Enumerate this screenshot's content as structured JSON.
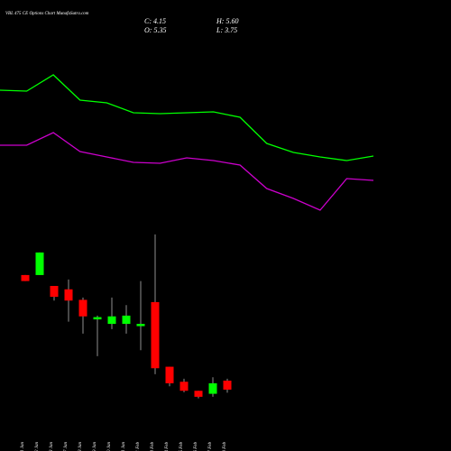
{
  "chart_data": {
    "type": "candlestick",
    "title": "VBL 475 CE Options Chart MunafaSutra.com",
    "header": {
      "close": "C: 4.15",
      "high": "H: 5.60",
      "open": "O: 5.35",
      "low": "L: 3.75"
    },
    "categories": [
      "21 Jan",
      "22 Jan",
      "23 Jan",
      "27 Jan",
      "28 Jan",
      "29 Jan",
      "30 Jan",
      "31 Jan",
      "01 Feb",
      "03 Feb",
      "04 Feb",
      "05 Feb",
      "06 Feb",
      "07 Feb",
      "10 Feb"
    ],
    "open": [
      19.4,
      19.4,
      17.95,
      17.5,
      16.1,
      13.5,
      12.9,
      12.9,
      12.6,
      15.8,
      7.2,
      5.2,
      4.0,
      3.6,
      5.35
    ],
    "high": [
      19.4,
      22.4,
      17.95,
      18.8,
      16.4,
      14.0,
      16.4,
      15.4,
      18.6,
      24.8,
      7.2,
      5.6,
      4.0,
      5.8,
      5.6
    ],
    "low": [
      18.6,
      19.4,
      16.0,
      13.2,
      11.6,
      8.6,
      12.2,
      11.6,
      9.4,
      6.2,
      4.6,
      3.8,
      3.0,
      3.2,
      3.75
    ],
    "close": [
      18.6,
      22.4,
      16.5,
      16.0,
      13.9,
      13.8,
      13.9,
      14.0,
      12.9,
      7.0,
      5.0,
      4.0,
      3.2,
      5.0,
      4.15
    ],
    "up_color": "#00ff00",
    "down_color": "#ff0000",
    "ylim": [
      2,
      27
    ],
    "lines": {
      "ylim": [
        0,
        100
      ],
      "series": [
        {
          "color": "#00ff00",
          "values": [
            80,
            79.5,
            88.5,
            74.5,
            73,
            67.5,
            67,
            67.5,
            68,
            65,
            50.5,
            45.5,
            43,
            41,
            43.5
          ]
        },
        {
          "color": "#cc00cc",
          "values": [
            49.5,
            49.5,
            56.5,
            46,
            43,
            40,
            39.5,
            42.5,
            41,
            38.5,
            25.5,
            20,
            13.5,
            31,
            30
          ]
        }
      ]
    }
  }
}
